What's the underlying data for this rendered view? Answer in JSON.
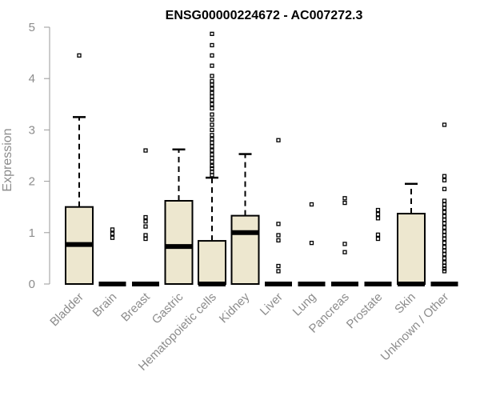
{
  "chart_data": {
    "type": "boxplot",
    "title": "ENSG00000224672 - AC007272.3",
    "ylabel": "Expression",
    "ylim": [
      0,
      5
    ],
    "yticks": [
      0,
      1,
      2,
      3,
      4,
      5
    ],
    "grid": false,
    "legend": "none",
    "box_fill": "#ede7cf",
    "categories": [
      "Bladder",
      "Brain",
      "Breast",
      "Gastric",
      "Hematopoietic cells",
      "Kidney",
      "Liver",
      "Lung",
      "Pancreas",
      "Prostate",
      "Skin",
      "Unknown / Other"
    ],
    "boxes": [
      {
        "category": "Bladder",
        "min": 0,
        "q1": 0,
        "median": 0.77,
        "q3": 1.5,
        "max": 3.25,
        "outliers": [
          4.45
        ]
      },
      {
        "category": "Brain",
        "min": 0,
        "q1": 0,
        "median": 0,
        "q3": 0,
        "max": 0,
        "outliers": [
          0.9,
          0.98,
          1.06
        ]
      },
      {
        "category": "Breast",
        "min": 0,
        "q1": 0,
        "median": 0,
        "q3": 0,
        "max": 0,
        "outliers": [
          0.88,
          0.95,
          1.12,
          1.22,
          1.3,
          2.6
        ]
      },
      {
        "category": "Gastric",
        "min": 0,
        "q1": 0,
        "median": 0.73,
        "q3": 1.62,
        "max": 2.62,
        "outliers": []
      },
      {
        "category": "Hematopoietic cells",
        "min": 0,
        "q1": 0,
        "median": 0,
        "q3": 0.84,
        "max": 2.07,
        "outliers": [
          2.12,
          2.18,
          2.25,
          2.3,
          2.38,
          2.45,
          2.52,
          2.6,
          2.68,
          2.75,
          2.82,
          2.9,
          3.0,
          3.1,
          3.2,
          3.3,
          3.42,
          3.5,
          3.58,
          3.65,
          3.72,
          3.8,
          3.88,
          3.95,
          4.05,
          4.25,
          4.45,
          4.65,
          4.87
        ]
      },
      {
        "category": "Kidney",
        "min": 0,
        "q1": 0,
        "median": 1.0,
        "q3": 1.33,
        "max": 2.53,
        "outliers": []
      },
      {
        "category": "Liver",
        "min": 0,
        "q1": 0,
        "median": 0,
        "q3": 0,
        "max": 0,
        "outliers": [
          0.25,
          0.35,
          0.85,
          0.95,
          1.17,
          2.8
        ]
      },
      {
        "category": "Lung",
        "min": 0,
        "q1": 0,
        "median": 0,
        "q3": 0,
        "max": 0,
        "outliers": [
          0.8,
          1.55
        ]
      },
      {
        "category": "Pancreas",
        "min": 0,
        "q1": 0,
        "median": 0,
        "q3": 0,
        "max": 0,
        "outliers": [
          0.62,
          0.78,
          1.58,
          1.67
        ]
      },
      {
        "category": "Prostate",
        "min": 0,
        "q1": 0,
        "median": 0,
        "q3": 0,
        "max": 0,
        "outliers": [
          0.88,
          0.96,
          1.28,
          1.36,
          1.44
        ]
      },
      {
        "category": "Skin",
        "min": 0,
        "q1": 0,
        "median": 0,
        "q3": 1.37,
        "max": 1.95,
        "outliers": []
      },
      {
        "category": "Unknown / Other",
        "min": 0,
        "q1": 0,
        "median": 0,
        "q3": 0,
        "max": 0,
        "outliers": [
          0.25,
          0.3,
          0.35,
          0.42,
          0.5,
          0.58,
          0.65,
          0.72,
          0.8,
          0.88,
          0.95,
          1.02,
          1.1,
          1.18,
          1.25,
          1.32,
          1.4,
          1.48,
          1.55,
          1.62,
          1.85,
          2.02,
          2.1,
          3.1
        ]
      }
    ]
  }
}
